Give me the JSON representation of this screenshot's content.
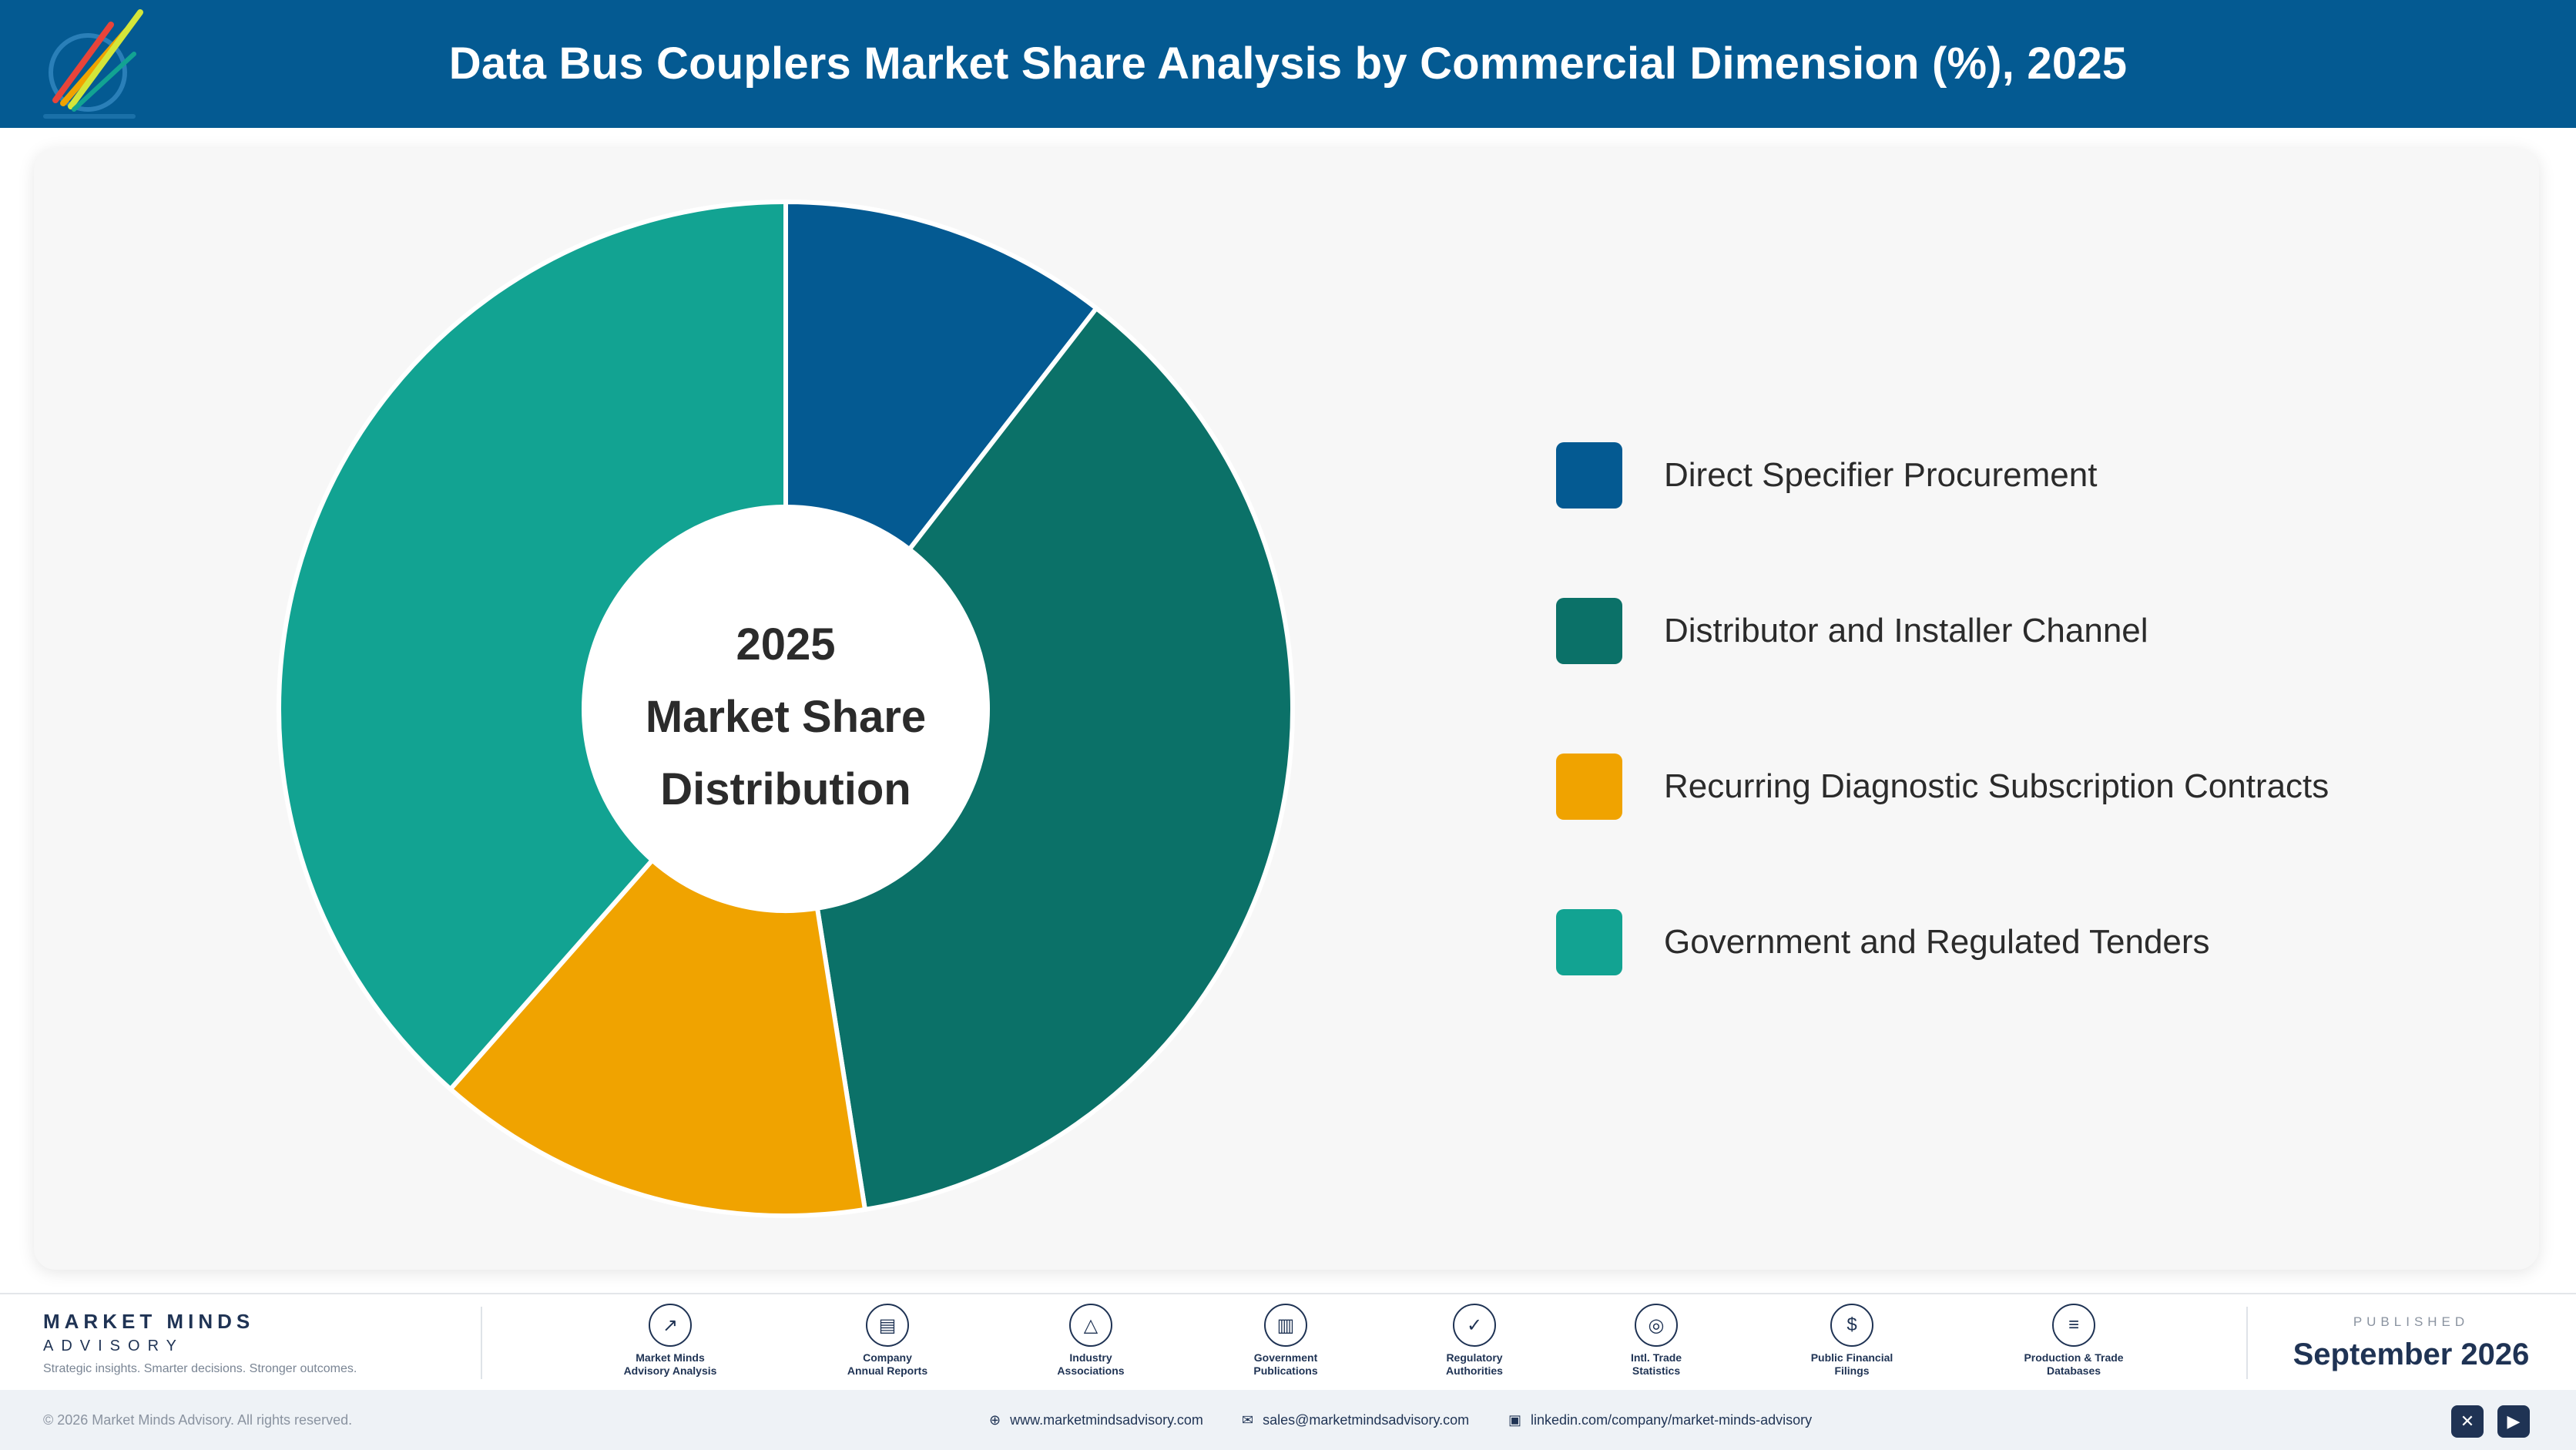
{
  "header": {
    "title": "Data Bus Couplers Market Share Analysis by Commercial Dimension (%), 2025"
  },
  "chart_data": {
    "type": "pie",
    "variant": "donut",
    "title": "Data Bus Couplers Market Share Analysis by Commercial Dimension (%), 2025",
    "center_label": [
      "2025",
      "Market Share",
      "Distribution"
    ],
    "categories": [
      "Direct Specifier Procurement",
      "Distributor and Installer Channel",
      "Recurring Diagnostic Subscription Contracts",
      "Government and Regulated Tenders"
    ],
    "values": [
      10.5,
      37.0,
      14.0,
      38.5
    ],
    "colors": [
      "#045a92",
      "#0b7168",
      "#f0a300",
      "#12a392"
    ],
    "legend_position": "right"
  },
  "footer": {
    "brand_name": "MARKET MINDS",
    "brand_sub": "ADVISORY",
    "tagline": "Strategic insights. Smarter decisions. Stronger outcomes.",
    "sources": [
      {
        "icon": "trend-chart-icon",
        "glyph": "↗",
        "line1": "Market Minds",
        "line2": "Advisory Analysis"
      },
      {
        "icon": "document-icon",
        "glyph": "▤",
        "line1": "Company",
        "line2": "Annual Reports"
      },
      {
        "icon": "network-icon",
        "glyph": "△",
        "line1": "Industry",
        "line2": "Associations"
      },
      {
        "icon": "government-building-icon",
        "glyph": "▥",
        "line1": "Government",
        "line2": "Publications"
      },
      {
        "icon": "shield-check-icon",
        "glyph": "✓",
        "line1": "Regulatory",
        "line2": "Authorities"
      },
      {
        "icon": "globe-icon",
        "glyph": "◎",
        "line1": "Intl. Trade",
        "line2": "Statistics"
      },
      {
        "icon": "coin-icon",
        "glyph": "$",
        "line1": "Public Financial",
        "line2": "Filings"
      },
      {
        "icon": "database-icon",
        "glyph": "≡",
        "line1": "Production & Trade",
        "line2": "Databases"
      }
    ],
    "published_label": "PUBLISHED",
    "published_date": "September 2026"
  },
  "bottom_bar": {
    "copyright": "© 2026 Market Minds Advisory. All rights reserved.",
    "website": "www.marketmindsadvisory.com",
    "email": "sales@marketmindsadvisory.com",
    "linkedin": "linkedin.com/company/market-minds-advisory"
  }
}
